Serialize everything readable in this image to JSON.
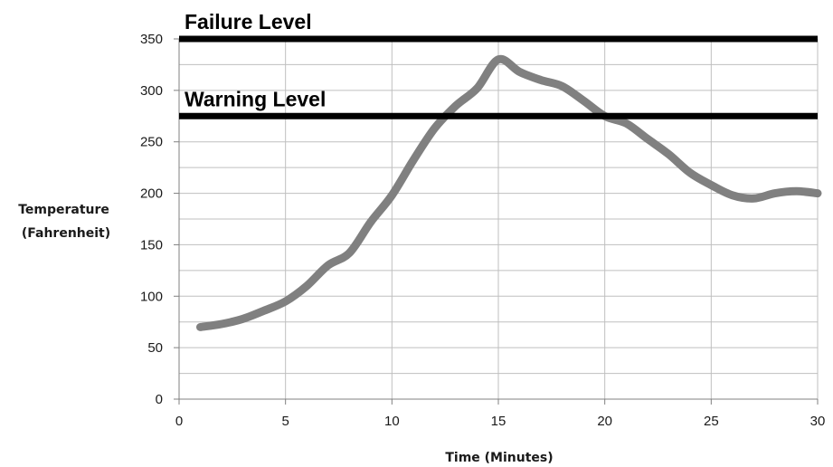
{
  "chart_data": {
    "type": "line",
    "xlabel": "Time (Minutes)",
    "ylabel_lines": [
      "Temperature",
      "(Fahrenheit)"
    ],
    "xlim": [
      0,
      30
    ],
    "ylim": [
      0,
      350
    ],
    "x_ticks": [
      "0",
      "5",
      "10",
      "15",
      "20",
      "25",
      "30"
    ],
    "y_ticks": [
      "0",
      "50",
      "100",
      "150",
      "200",
      "250",
      "300",
      "350"
    ],
    "grid": true,
    "reference_lines": [
      {
        "label": "Failure Level",
        "y": 350,
        "color": "#000000"
      },
      {
        "label": "Warning Level",
        "y": 275,
        "color": "#000000"
      }
    ],
    "series": [
      {
        "color": "#808080",
        "x": [
          1,
          2,
          3,
          4,
          5,
          6,
          7,
          8,
          9,
          10,
          11,
          12,
          13,
          14,
          15,
          16,
          17,
          18,
          19,
          20,
          21,
          22,
          23,
          24,
          25,
          26,
          27,
          28,
          29,
          30
        ],
        "y": [
          70,
          73,
          78,
          86,
          95,
          110,
          130,
          142,
          172,
          198,
          232,
          263,
          285,
          302,
          330,
          318,
          310,
          304,
          290,
          275,
          268,
          253,
          238,
          220,
          208,
          198,
          195,
          200,
          202,
          200
        ]
      }
    ]
  }
}
